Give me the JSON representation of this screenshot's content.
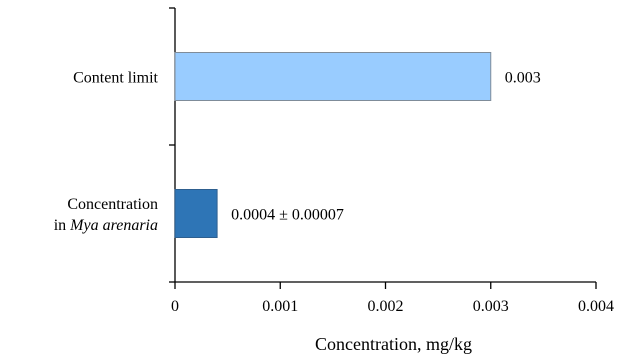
{
  "chart_data": {
    "type": "bar",
    "orientation": "horizontal",
    "title": "",
    "xlabel": "Concentration, mg/kg",
    "ylabel": "",
    "xlim": [
      0,
      0.004
    ],
    "x_ticks": [
      0,
      0.001,
      0.002,
      0.003,
      0.004
    ],
    "x_tick_labels": [
      "0",
      "0.001",
      "0.002",
      "0.003",
      "0.004"
    ],
    "grid": false,
    "legend": "none",
    "categories": [
      {
        "lines": [
          {
            "text": "Content limit",
            "italic": false
          }
        ]
      },
      {
        "lines": [
          {
            "text": "Concentration",
            "italic": false
          },
          {
            "text": "in ",
            "italic": false,
            "italic_part": "Mya arenaria"
          }
        ]
      }
    ],
    "values": [
      0.003,
      0.0004
    ],
    "data_labels": [
      "0.003",
      "0.0004 ± 0.00007"
    ],
    "colors": [
      "#99ccff",
      "#2e75b6"
    ],
    "border_colors": [
      "#7f8c99",
      "#2e5f8f"
    ]
  }
}
